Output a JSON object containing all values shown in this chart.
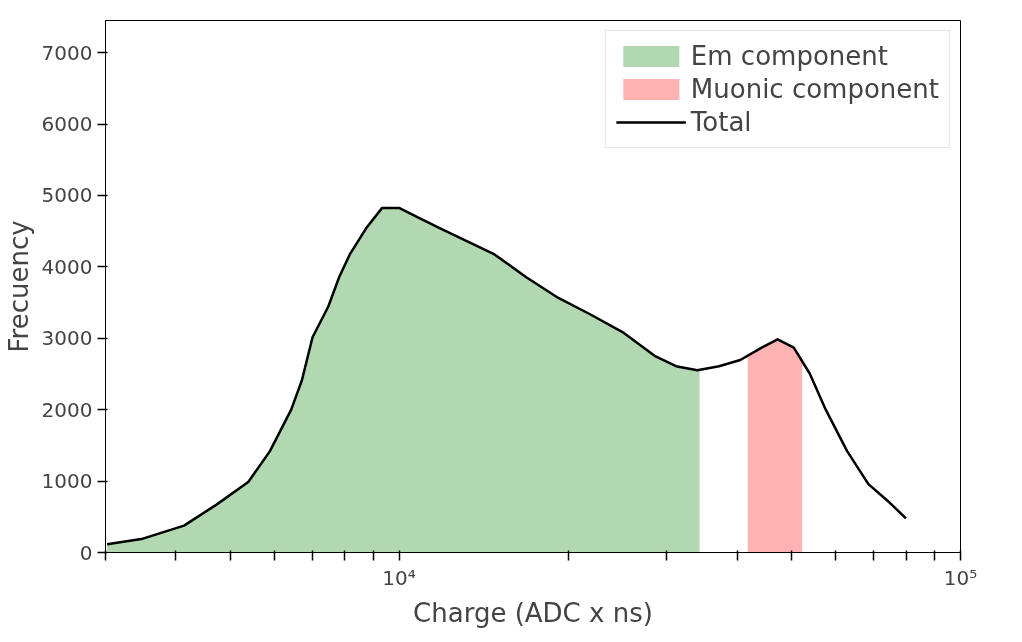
{
  "chart_data": {
    "type": "area",
    "xlabel": "Charge (ADC x ns)",
    "ylabel": "Frecuency",
    "log": "x",
    "grid": false,
    "legend": "top right",
    "xlim": [
      3000,
      100000
    ],
    "ylim": [
      0,
      7450
    ],
    "xticks": [
      {
        "value": 3000,
        "label": null
      },
      {
        "value": 4000,
        "label": null
      },
      {
        "value": 5000,
        "label": null
      },
      {
        "value": 6000,
        "label": null
      },
      {
        "value": 7000,
        "label": null
      },
      {
        "value": 8000,
        "label": null
      },
      {
        "value": 9000,
        "label": null
      },
      {
        "value": 10000,
        "label": "10⁴"
      },
      {
        "value": 20000,
        "label": null
      },
      {
        "value": 30000,
        "label": null
      },
      {
        "value": 40000,
        "label": null
      },
      {
        "value": 50000,
        "label": null
      },
      {
        "value": 60000,
        "label": null
      },
      {
        "value": 70000,
        "label": null
      },
      {
        "value": 80000,
        "label": null
      },
      {
        "value": 90000,
        "label": null
      },
      {
        "value": 100000,
        "label": "10⁵"
      }
    ],
    "yticks": [
      0,
      1000,
      2000,
      3000,
      4000,
      5000,
      6000,
      7000
    ],
    "series": [
      {
        "name": "Em component",
        "color": "#b2d8b2",
        "x": [
          3020,
          3475,
          4140,
          4723,
          5387,
          5888,
          6425,
          6710,
          7013,
          7485,
          7820,
          8170,
          8730,
          9330,
          10000,
          10870,
          11860,
          12950,
          14790,
          16850,
          19220,
          21930,
          25000,
          28520,
          31140,
          34300
        ],
        "values": [
          116,
          188,
          377,
          667,
          986,
          1420,
          2000,
          2406,
          3014,
          3449,
          3855,
          4174,
          4536,
          4826,
          4826,
          4681,
          4536,
          4391,
          4174,
          3855,
          3565,
          3333,
          3087,
          2754,
          2609,
          2551
        ]
      },
      {
        "name": "Muonic component",
        "color": "#ffb2b2",
        "x": [
          41780,
          44250,
          47240,
          50470,
          52240
        ],
        "values": [
          2750,
          2870,
          2986,
          2870,
          2700
        ]
      },
      {
        "name": "Total",
        "type": "line",
        "color": "#000000",
        "x": [
          3020,
          3475,
          4140,
          4723,
          5387,
          5888,
          6425,
          6710,
          7013,
          7485,
          7820,
          8170,
          8730,
          9330,
          10000,
          10870,
          11860,
          12950,
          14790,
          16850,
          19220,
          21930,
          25000,
          28520,
          31140,
          33990,
          37150,
          40530,
          44250,
          47240,
          50470,
          53880,
          57540,
          62810,
          68550,
          74830,
          79950
        ],
        "values": [
          116,
          188,
          377,
          667,
          986,
          1420,
          2000,
          2406,
          3014,
          3449,
          3855,
          4174,
          4536,
          4826,
          4826,
          4681,
          4536,
          4391,
          4174,
          3855,
          3565,
          3333,
          3087,
          2754,
          2609,
          2551,
          2609,
          2696,
          2870,
          2986,
          2870,
          2507,
          2000,
          1420,
          957,
          696,
          478
        ]
      }
    ]
  }
}
